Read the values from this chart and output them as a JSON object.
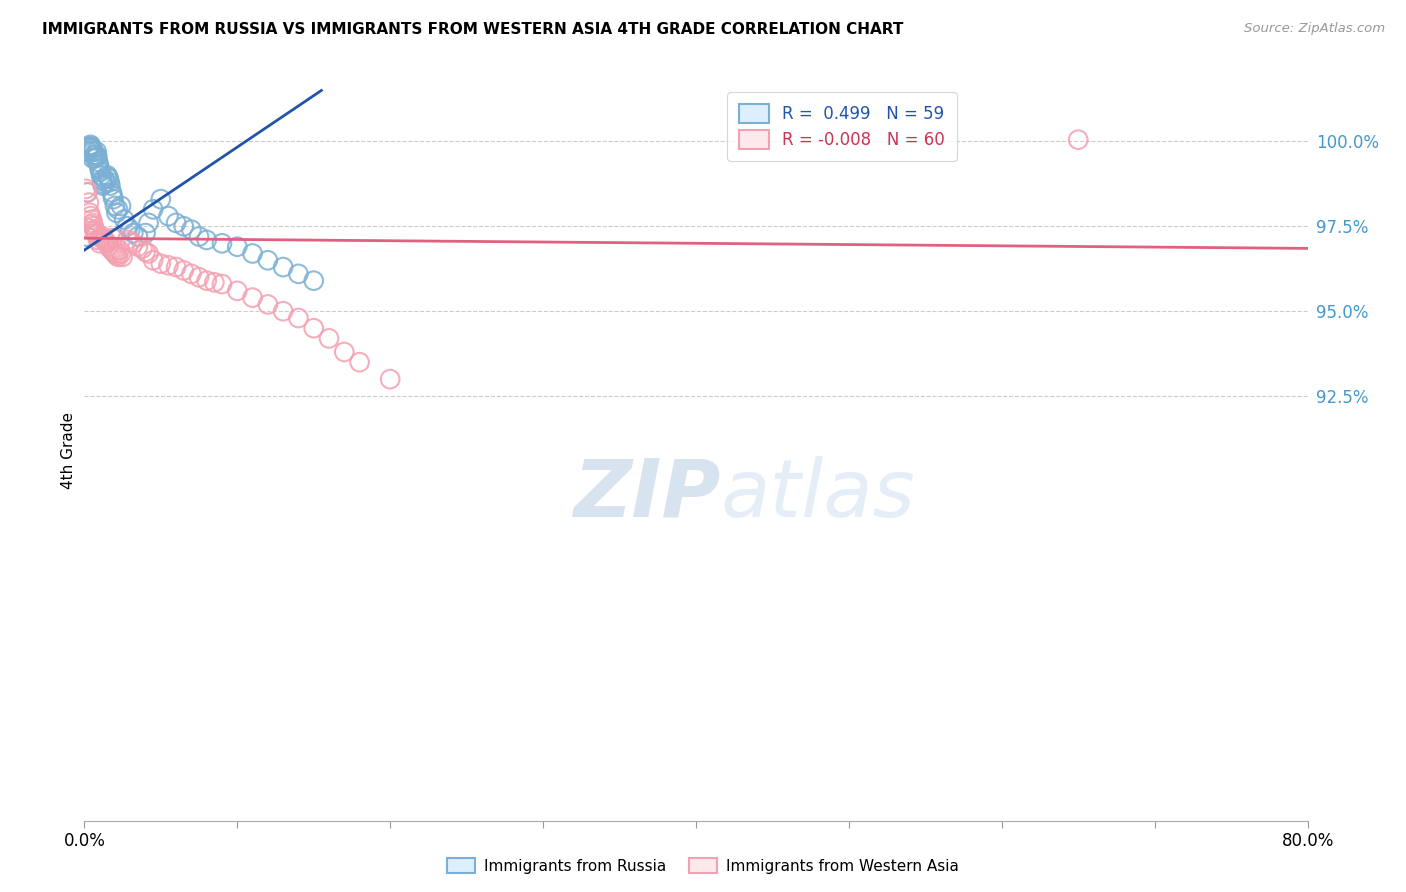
{
  "title": "IMMIGRANTS FROM RUSSIA VS IMMIGRANTS FROM WESTERN ASIA 4TH GRADE CORRELATION CHART",
  "source": "Source: ZipAtlas.com",
  "ylabel": "4th Grade",
  "y_tick_values": [
    100.0,
    97.5,
    95.0,
    92.5
  ],
  "x_min": 0.0,
  "x_max": 80.0,
  "y_min": 80.0,
  "y_max": 101.8,
  "watermark_zip": "ZIP",
  "watermark_atlas": "atlas",
  "blue_color": "#7bafd4",
  "pink_color": "#f4a0b0",
  "blue_line_color": "#2255aa",
  "pink_line_color": "#e06080",
  "blue_line_x0": 0.0,
  "blue_line_y0": 96.8,
  "blue_line_x1": 15.5,
  "blue_line_y1": 101.5,
  "pink_line_x0": 0.0,
  "pink_line_y0": 97.15,
  "pink_line_x1": 80.0,
  "pink_line_y1": 96.85,
  "blue_scatter_x": [
    0.15,
    0.25,
    0.3,
    0.35,
    0.4,
    0.45,
    0.5,
    0.55,
    0.6,
    0.65,
    0.7,
    0.75,
    0.8,
    0.85,
    0.9,
    0.95,
    1.0,
    1.05,
    1.1,
    1.15,
    1.2,
    1.3,
    1.4,
    1.5,
    1.55,
    1.6,
    1.65,
    1.7,
    1.8,
    1.9,
    2.0,
    2.1,
    2.2,
    2.4,
    2.6,
    2.8,
    3.0,
    3.5,
    4.0,
    4.5,
    5.0,
    5.5,
    6.0,
    6.5,
    7.0,
    7.5,
    8.0,
    9.0,
    10.0,
    11.0,
    12.0,
    13.0,
    14.0,
    15.0,
    0.2,
    0.55,
    1.25,
    1.85,
    3.2,
    4.2
  ],
  "blue_scatter_y": [
    97.2,
    99.7,
    99.8,
    99.85,
    99.9,
    99.85,
    99.8,
    99.75,
    99.7,
    99.6,
    99.5,
    99.6,
    99.7,
    99.55,
    99.4,
    99.3,
    99.2,
    99.1,
    99.0,
    98.85,
    98.7,
    98.9,
    98.8,
    99.0,
    98.95,
    98.9,
    98.8,
    98.7,
    98.5,
    98.3,
    98.1,
    97.9,
    98.0,
    98.1,
    97.7,
    97.5,
    97.4,
    97.2,
    97.3,
    98.0,
    98.3,
    97.8,
    97.6,
    97.5,
    97.4,
    97.2,
    97.1,
    97.0,
    96.9,
    96.7,
    96.5,
    96.3,
    96.1,
    95.9,
    98.5,
    99.5,
    98.75,
    98.4,
    97.3,
    97.6
  ],
  "pink_scatter_x": [
    0.1,
    0.2,
    0.3,
    0.35,
    0.4,
    0.45,
    0.5,
    0.55,
    0.6,
    0.65,
    0.7,
    0.75,
    0.8,
    0.9,
    1.0,
    1.1,
    1.2,
    1.3,
    1.4,
    1.5,
    1.6,
    1.7,
    1.8,
    1.9,
    2.0,
    2.1,
    2.2,
    2.3,
    2.4,
    2.5,
    2.8,
    3.0,
    3.2,
    3.5,
    3.8,
    4.0,
    4.2,
    4.5,
    5.0,
    5.5,
    6.0,
    6.5,
    7.0,
    7.5,
    8.0,
    8.5,
    9.0,
    10.0,
    11.0,
    12.0,
    13.0,
    14.0,
    15.0,
    16.0,
    17.0,
    18.0,
    20.0,
    65.0,
    0.25,
    1.85
  ],
  "pink_scatter_y": [
    98.6,
    98.5,
    98.2,
    97.9,
    97.8,
    97.55,
    97.7,
    97.6,
    97.5,
    97.4,
    97.35,
    97.3,
    97.25,
    97.1,
    97.0,
    97.15,
    97.2,
    97.1,
    97.05,
    97.0,
    96.9,
    96.85,
    96.8,
    96.75,
    96.7,
    96.65,
    96.6,
    96.8,
    96.7,
    96.6,
    97.1,
    97.05,
    97.0,
    96.9,
    96.85,
    96.75,
    96.7,
    96.5,
    96.4,
    96.35,
    96.3,
    96.2,
    96.1,
    96.0,
    95.9,
    95.85,
    95.8,
    95.6,
    95.4,
    95.2,
    95.0,
    94.8,
    94.5,
    94.2,
    93.8,
    93.5,
    93.0,
    100.05,
    97.45,
    97.15
  ]
}
